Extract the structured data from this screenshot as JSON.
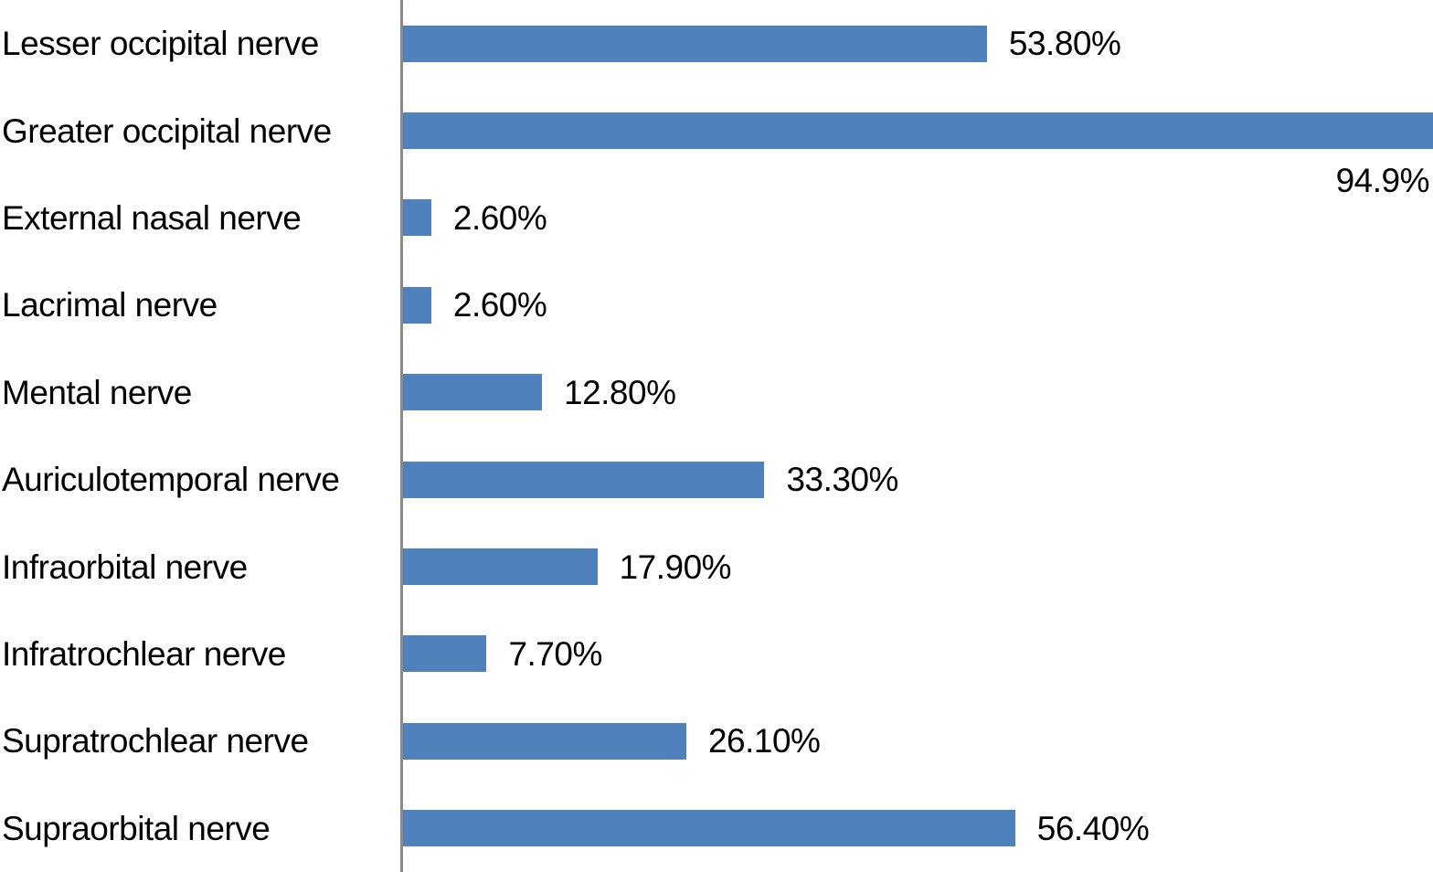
{
  "chart_data": {
    "type": "bar",
    "orientation": "horizontal",
    "title": "",
    "xlabel": "",
    "ylabel": "",
    "xlim": [
      0,
      94.9
    ],
    "grid": false,
    "legend": "none",
    "bar_color": "#4f81bd",
    "axis_color": "#8b8b8b",
    "categories": [
      "Lesser occipital nerve",
      "Greater occipital nerve",
      "External nasal nerve",
      "Lacrimal nerve",
      "Mental nerve",
      "Auriculotemporal nerve",
      "Infraorbital nerve",
      "Infratrochlear nerve",
      "Supratrochlear nerve",
      "Supraorbital nerve"
    ],
    "values": [
      53.8,
      94.9,
      2.6,
      2.6,
      12.8,
      33.3,
      17.9,
      7.7,
      26.1,
      56.4
    ],
    "value_labels": [
      "53.80%",
      "94.9%",
      "2.60%",
      "2.60%",
      "12.80%",
      "33.30%",
      "17.90%",
      "7.70%",
      "26.10%",
      "56.40%"
    ],
    "value_label_below_bar": [
      false,
      true,
      false,
      false,
      false,
      false,
      false,
      false,
      false,
      false
    ]
  }
}
